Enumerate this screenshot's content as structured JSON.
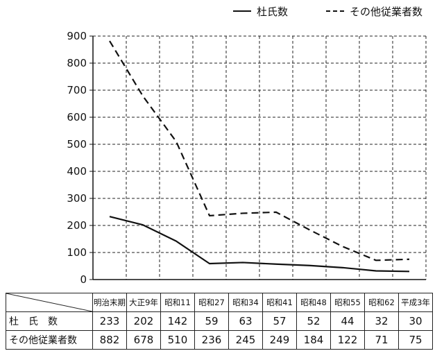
{
  "chart_data": {
    "type": "line",
    "categories": [
      "明治末期",
      "大正9年",
      "昭和11",
      "昭和27",
      "昭和34",
      "昭和41",
      "昭和48",
      "昭和55",
      "昭和62",
      "平成3年"
    ],
    "series": [
      {
        "name": "杜氏数",
        "values": [
          233,
          202,
          142,
          59,
          63,
          57,
          52,
          44,
          32,
          30
        ],
        "style": "solid"
      },
      {
        "name": "その他従業者数",
        "values": [
          882,
          678,
          510,
          236,
          245,
          249,
          184,
          122,
          71,
          75
        ],
        "style": "dashed"
      }
    ],
    "yticks": [
      0,
      100,
      200,
      300,
      400,
      500,
      600,
      700,
      800,
      900
    ],
    "ylim": [
      0,
      900
    ],
    "grid": true,
    "legend_position": "top-right",
    "colors": {
      "line": "#111111",
      "grid": "#222222"
    }
  },
  "table": {
    "row_labels": [
      "杜　氏　数",
      "その他従業者数"
    ]
  }
}
